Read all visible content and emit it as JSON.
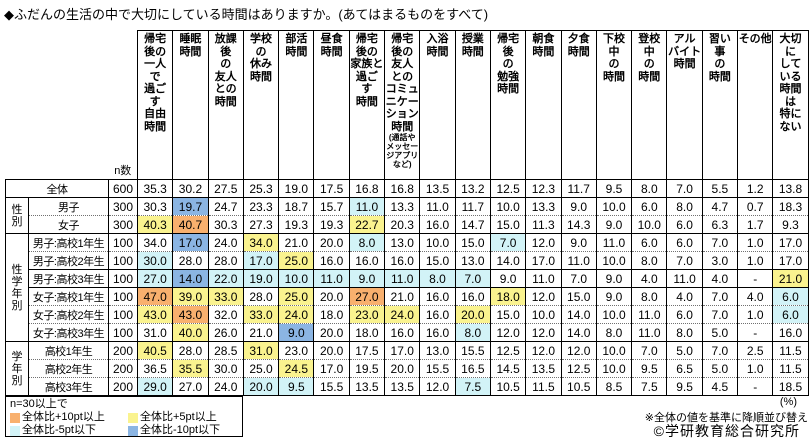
{
  "title": "◆ふだんの生活の中で大切にしている時間はありますか。(あてはまるものをすべて)",
  "colors": {
    "p10": "#F8B06E",
    "p5": "#FAF38F",
    "m5": "#D2F3F7",
    "m10": "#8BB5E3"
  },
  "chart_data": {
    "type": "table",
    "title": "ふだんの生活の中で大切にしている時間はありますか。(あてはまるものをすべて)",
    "unit": "%",
    "columns": [
      "帰宅後の一人で過ごす自由時間",
      "睡眠時間",
      "放課後の友人との時間",
      "学校の休み時間",
      "部活時間",
      "昼食時間",
      "帰宅後の家族と過ごす時間",
      "帰宅後の友人とのコミュニケーション時間(通話やメッセージアプリなど)",
      "入浴時間",
      "授業時間",
      "帰宅後の勉強時間",
      "朝食時間",
      "夕食時間",
      "下校中の時間",
      "登校中の時間",
      "アルバイト時間",
      "習い事の時間",
      "その他",
      "大切にしている時間は特にない"
    ],
    "rows": [
      {
        "group": "",
        "label": "全体",
        "n": 600,
        "values": [
          35.3,
          30.2,
          27.5,
          25.3,
          19.0,
          17.5,
          16.8,
          16.8,
          13.5,
          13.2,
          12.5,
          12.3,
          11.7,
          9.5,
          8.0,
          7.0,
          5.5,
          1.2,
          13.8
        ]
      },
      {
        "group": "性別",
        "label": "男子",
        "n": 300,
        "values": [
          30.3,
          19.7,
          24.7,
          23.3,
          18.7,
          15.7,
          11.0,
          13.3,
          11.0,
          11.7,
          10.0,
          13.3,
          9.0,
          10.0,
          6.0,
          8.0,
          4.7,
          0.7,
          18.3
        ]
      },
      {
        "group": "性別",
        "label": "女子",
        "n": 300,
        "values": [
          40.3,
          40.7,
          30.3,
          27.3,
          19.3,
          19.3,
          22.7,
          20.3,
          16.0,
          14.7,
          15.0,
          11.3,
          14.3,
          9.0,
          10.0,
          6.0,
          6.3,
          1.7,
          9.3
        ]
      },
      {
        "group": "性学年別",
        "label": "男子:高校1年生",
        "n": 100,
        "values": [
          34.0,
          17.0,
          24.0,
          34.0,
          21.0,
          20.0,
          8.0,
          13.0,
          10.0,
          15.0,
          7.0,
          12.0,
          9.0,
          11.0,
          6.0,
          6.0,
          7.0,
          1.0,
          17.0
        ]
      },
      {
        "group": "性学年別",
        "label": "男子:高校2年生",
        "n": 100,
        "values": [
          30.0,
          28.0,
          28.0,
          17.0,
          25.0,
          16.0,
          16.0,
          16.0,
          15.0,
          13.0,
          14.0,
          17.0,
          11.0,
          10.0,
          8.0,
          7.0,
          3.0,
          1.0,
          17.0
        ]
      },
      {
        "group": "性学年別",
        "label": "男子:高校3年生",
        "n": 100,
        "values": [
          27.0,
          14.0,
          22.0,
          19.0,
          10.0,
          11.0,
          9.0,
          11.0,
          8.0,
          7.0,
          9.0,
          11.0,
          7.0,
          9.0,
          4.0,
          11.0,
          4.0,
          null,
          21.0
        ]
      },
      {
        "group": "性学年別",
        "label": "女子:高校1年生",
        "n": 100,
        "values": [
          47.0,
          39.0,
          33.0,
          28.0,
          25.0,
          20.0,
          27.0,
          21.0,
          16.0,
          16.0,
          18.0,
          12.0,
          15.0,
          9.0,
          8.0,
          4.0,
          7.0,
          4.0,
          6.0
        ]
      },
      {
        "group": "性学年別",
        "label": "女子:高校2年生",
        "n": 100,
        "values": [
          43.0,
          43.0,
          32.0,
          33.0,
          24.0,
          18.0,
          23.0,
          24.0,
          16.0,
          20.0,
          15.0,
          10.0,
          14.0,
          10.0,
          11.0,
          6.0,
          7.0,
          1.0,
          6.0
        ]
      },
      {
        "group": "性学年別",
        "label": "女子:高校3年生",
        "n": 100,
        "values": [
          31.0,
          40.0,
          26.0,
          21.0,
          9.0,
          20.0,
          18.0,
          16.0,
          16.0,
          8.0,
          12.0,
          12.0,
          14.0,
          8.0,
          11.0,
          8.0,
          5.0,
          null,
          16.0
        ]
      },
      {
        "group": "学年別",
        "label": "高校1年生",
        "n": 200,
        "values": [
          40.5,
          28.0,
          28.5,
          31.0,
          23.0,
          20.0,
          17.5,
          17.0,
          13.0,
          15.5,
          12.5,
          12.0,
          12.0,
          10.0,
          7.0,
          5.0,
          7.0,
          2.5,
          11.5
        ]
      },
      {
        "group": "学年別",
        "label": "高校2年生",
        "n": 200,
        "values": [
          36.5,
          35.5,
          30.0,
          25.0,
          24.5,
          17.0,
          19.5,
          20.0,
          15.5,
          16.5,
          14.5,
          13.5,
          12.5,
          10.0,
          9.5,
          6.5,
          5.0,
          1.0,
          11.5
        ]
      },
      {
        "group": "学年別",
        "label": "高校3年生",
        "n": 200,
        "values": [
          29.0,
          27.0,
          24.0,
          20.0,
          9.5,
          15.5,
          13.5,
          13.5,
          12.0,
          7.5,
          10.5,
          11.5,
          10.5,
          8.5,
          7.5,
          9.5,
          4.5,
          null,
          18.5
        ]
      }
    ]
  },
  "table": {
    "n_header": "n数",
    "columns_display": [
      {
        "label": "帰宅\n後の\n一人\nで\n過ご\nす\n自由\n時間"
      },
      {
        "label": "睡眠\n時間"
      },
      {
        "label": "放課\n後\nの\n友人\nとの\n時間"
      },
      {
        "label": "学校\nの\n休み\n時間"
      },
      {
        "label": "部活\n時間"
      },
      {
        "label": "昼食\n時間"
      },
      {
        "label": "帰宅\n後の\n家族と\n過ご\nす\n時間"
      },
      {
        "label": "帰宅\n後の\n友人\nとの\nコミュ\nニケー\nション\n時間",
        "sub": "(通話や\nメッセー\nジアプリ\nなど)"
      },
      {
        "label": "入浴\n時間"
      },
      {
        "label": "授業\n時間"
      },
      {
        "label": "帰宅\n後\nの\n勉強\n時間"
      },
      {
        "label": "朝食\n時間"
      },
      {
        "label": "夕食\n時間"
      },
      {
        "label": "下校\n中\nの\n時間"
      },
      {
        "label": "登校\n中\nの\n時間"
      },
      {
        "label": "アル\nバイト\n時間"
      },
      {
        "label": "習い\n事\nの\n時間"
      },
      {
        "label": "その他"
      },
      {
        "label": "大切\nに\nして\nいる\n時間\nは\n特に\nない"
      }
    ],
    "groups": [
      {
        "label": "性\n別",
        "start": 1,
        "rows": 2
      },
      {
        "label": "性\n学\n年\n別",
        "start": 3,
        "rows": 6
      },
      {
        "label": "学\n年\n別",
        "start": 9,
        "rows": 3
      }
    ],
    "row_seps": [
      "none",
      "solid",
      "dotted",
      "solid",
      "dotted",
      "solid",
      "solid",
      "dotted",
      "dotted",
      "solid",
      "dotted",
      "dotted"
    ],
    "marks": [
      {},
      {
        "1": "m10",
        "6": "m5"
      },
      {
        "0": "p5",
        "1": "p10",
        "6": "p5"
      },
      {
        "1": "m10",
        "3": "p5",
        "6": "m5",
        "10": "m5"
      },
      {
        "0": "m5",
        "3": "m5",
        "4": "p5"
      },
      {
        "0": "m5",
        "1": "m10",
        "2": "m5",
        "3": "m5",
        "4": "m5",
        "5": "m5",
        "6": "m5",
        "7": "m5",
        "8": "m5",
        "9": "m5",
        "18": "p5"
      },
      {
        "0": "p10",
        "1": "p5",
        "2": "p5",
        "4": "p5",
        "6": "p10",
        "10": "p5",
        "18": "m5"
      },
      {
        "0": "p5",
        "1": "p10",
        "3": "p5",
        "4": "p5",
        "6": "p5",
        "7": "p5",
        "9": "p5",
        "18": "m5"
      },
      {
        "1": "p5",
        "4": "m10",
        "9": "m5"
      },
      {
        "0": "p5",
        "3": "p5"
      },
      {
        "1": "p5",
        "4": "p5"
      },
      {
        "0": "m5",
        "3": "m5",
        "4": "m5",
        "9": "m5"
      }
    ],
    "null_display": "-"
  },
  "legend": {
    "title": "n=30以上で",
    "items": [
      {
        "mark": "p10",
        "label": "全体比+10pt以上"
      },
      {
        "mark": "p5",
        "label": "全体比+5pt以上"
      },
      {
        "mark": "m5",
        "label": "全体比-5pt以下"
      },
      {
        "mark": "m10",
        "label": "全体比-10pt以下"
      }
    ]
  },
  "notes": {
    "percent": "(%)",
    "sort": "※全体の値を基準に降順並び替え",
    "credit": "©学研教育総合研究所"
  }
}
